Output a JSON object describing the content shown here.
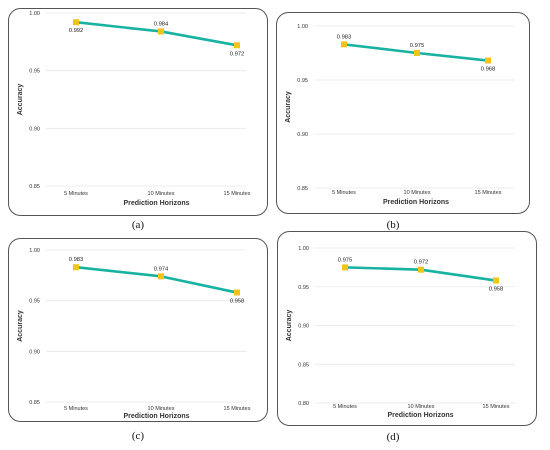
{
  "colors": {
    "line": "#17B2A0",
    "marker": "#F2C418"
  },
  "chart_data": [
    {
      "type": "line",
      "caption": "(a)",
      "categories": [
        "5 Minutes",
        "10 Minutes",
        "15 Minutes"
      ],
      "values": [
        0.992,
        0.984,
        0.972
      ],
      "value_labels": [
        "0.992",
        "0.984",
        "0.972"
      ],
      "xlabel": "Prediction Horizons",
      "ylabel": "Accuracy",
      "ylim": [
        0.85,
        1.0
      ],
      "yticks": [
        "0.85",
        "0.90",
        "0.95",
        "1.00"
      ],
      "grid": true
    },
    {
      "type": "line",
      "caption": "(b)",
      "categories": [
        "5 Minutes",
        "10 Minutes",
        "15 Minutes"
      ],
      "values": [
        0.983,
        0.975,
        0.968
      ],
      "value_labels": [
        "0.983",
        "0.975",
        "0.968"
      ],
      "xlabel": "Prediction Horizons",
      "ylabel": "Accuracy",
      "ylim": [
        0.85,
        1.0
      ],
      "yticks": [
        "0.85",
        "0.90",
        "0.95",
        "1.00"
      ],
      "grid": true
    },
    {
      "type": "line",
      "caption": "(c)",
      "categories": [
        "5 Minutes",
        "10 Minutes",
        "15 Minutes"
      ],
      "values": [
        0.983,
        0.974,
        0.958
      ],
      "value_labels": [
        "0.983",
        "0.974",
        "0.958"
      ],
      "xlabel": "Prediction Horizons",
      "ylabel": "Accuracy",
      "ylim": [
        0.85,
        1.0
      ],
      "yticks": [
        "0.85",
        "0.90",
        "0.95",
        "1.00"
      ],
      "grid": true
    },
    {
      "type": "line",
      "caption": "(d)",
      "categories": [
        "5 Minutes",
        "10 Minutes",
        "15 Minutes"
      ],
      "values": [
        0.975,
        0.972,
        0.958
      ],
      "value_labels": [
        "0.975",
        "0.972",
        "0.958"
      ],
      "xlabel": "Prediction Horizons",
      "ylabel": "Accuracy",
      "ylim": [
        0.8,
        1.0
      ],
      "yticks": [
        "0.80",
        "0.85",
        "0.90",
        "0.95",
        "1.00"
      ],
      "grid": true
    }
  ]
}
